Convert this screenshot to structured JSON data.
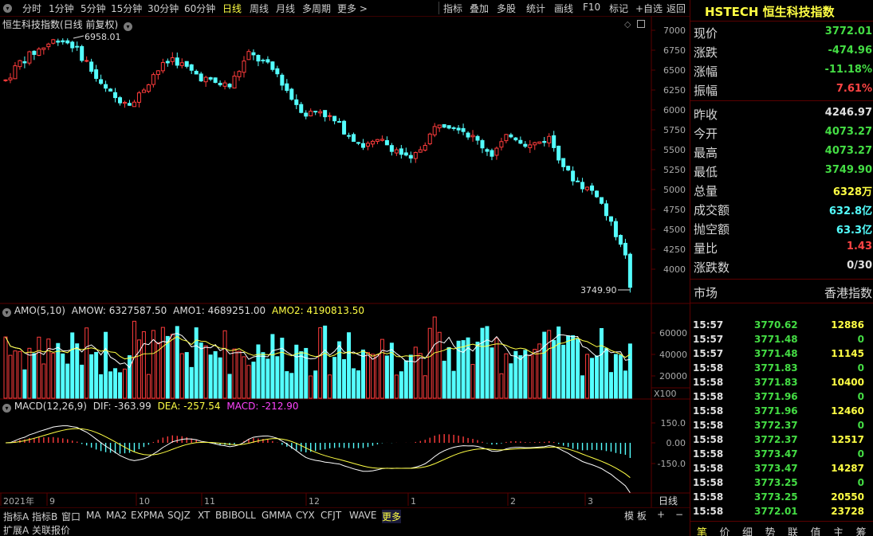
{
  "toolbar": {
    "items": [
      "分时",
      "1分钟",
      "5分钟",
      "15分钟",
      "30分钟",
      "60分钟",
      "日线",
      "周线",
      "月线",
      "多周期",
      "更多 >"
    ],
    "active_index": 6,
    "right_items": [
      "指标",
      "叠加",
      "多股",
      "统计",
      "画线",
      "F10",
      "标记",
      "+自选",
      "返回"
    ]
  },
  "chart": {
    "title": "恒生科技指数(日线 前复权)",
    "high_label": "6958.01",
    "low_label": "3749.90",
    "price_ticks": [
      "7000",
      "6750",
      "6500",
      "6250",
      "6000",
      "5750",
      "5500",
      "5250",
      "5000",
      "4750",
      "4500",
      "4250",
      "4000"
    ],
    "volume_title": "AMO(5,10)",
    "volume_amow": "AMOW: 6327587.50",
    "volume_amo1": "AMO1: 4689251.00",
    "volume_amo2": "AMO2: 4190813.50",
    "volume_ticks": [
      "60000",
      "40000",
      "20000"
    ],
    "volume_unit": "X100",
    "macd_title": "MACD(12,26,9)",
    "macd_dif": "DIF: -363.99",
    "macd_dea": "DEA: -257.54",
    "macd_macd": "MACD: -212.90",
    "macd_ticks": [
      "150.0",
      "0.00",
      "-150.0"
    ],
    "x_labels": [
      "2021年",
      "9",
      "10",
      "11",
      "12",
      "1",
      "2",
      "3"
    ],
    "period_label": "日线",
    "colors": {
      "up": "#ff3c3c",
      "down": "#54ffff",
      "yellow": "#ffff44",
      "magenta": "#ff44ff"
    }
  },
  "right_panel": {
    "title": "HSTECH 恒生科技指数",
    "quote": [
      {
        "label": "现价",
        "value": "3772.01",
        "color": "#44dd44"
      },
      {
        "label": "涨跌",
        "value": "-474.96",
        "color": "#44dd44"
      },
      {
        "label": "涨幅",
        "value": "-11.18%",
        "color": "#44dd44"
      },
      {
        "label": "振幅",
        "value": "7.61%",
        "color": "#ff4444"
      },
      {
        "label": "昨收",
        "value": "4246.97",
        "color": "#e0e0e0"
      },
      {
        "label": "今开",
        "value": "4073.27",
        "color": "#44dd44"
      },
      {
        "label": "最高",
        "value": "4073.27",
        "color": "#44dd44"
      },
      {
        "label": "最低",
        "value": "3749.90",
        "color": "#44dd44"
      },
      {
        "label": "总量",
        "value": "6328万",
        "color": "#ffff44"
      },
      {
        "label": "成交额",
        "value": "632.8亿",
        "color": "#54ffff"
      },
      {
        "label": "抛空额",
        "value": "63.3亿",
        "color": "#54ffff"
      },
      {
        "label": "量比",
        "value": "1.43",
        "color": "#ff4444"
      },
      {
        "label": "涨跌数",
        "value": "0/30",
        "color": "#e0e0e0"
      }
    ],
    "market_label": "市场",
    "market_value": "香港指数",
    "ticks": [
      {
        "time": "15:57",
        "price": "3770.62",
        "vol": "12886",
        "vc": "#ffff44"
      },
      {
        "time": "15:57",
        "price": "3771.48",
        "vol": "0",
        "vc": "#44dd44"
      },
      {
        "time": "15:57",
        "price": "3771.48",
        "vol": "11145",
        "vc": "#ffff44"
      },
      {
        "time": "15:58",
        "price": "3771.83",
        "vol": "0",
        "vc": "#44dd44"
      },
      {
        "time": "15:58",
        "price": "3771.83",
        "vol": "10400",
        "vc": "#ffff44"
      },
      {
        "time": "15:58",
        "price": "3771.96",
        "vol": "0",
        "vc": "#44dd44"
      },
      {
        "time": "15:58",
        "price": "3771.96",
        "vol": "12460",
        "vc": "#ffff44"
      },
      {
        "time": "15:58",
        "price": "3772.37",
        "vol": "0",
        "vc": "#44dd44"
      },
      {
        "time": "15:58",
        "price": "3772.37",
        "vol": "12517",
        "vc": "#ffff44"
      },
      {
        "time": "15:58",
        "price": "3773.47",
        "vol": "0",
        "vc": "#44dd44"
      },
      {
        "time": "15:58",
        "price": "3773.47",
        "vol": "14287",
        "vc": "#ffff44"
      },
      {
        "time": "15:58",
        "price": "3773.25",
        "vol": "0",
        "vc": "#44dd44"
      },
      {
        "time": "15:58",
        "price": "3773.25",
        "vol": "20550",
        "vc": "#ffff44"
      },
      {
        "time": "15:58",
        "price": "3772.01",
        "vol": "23728",
        "vc": "#ffff44"
      }
    ],
    "tabs": [
      "笔",
      "价",
      "细",
      "势",
      "联",
      "值",
      "主",
      "筹"
    ]
  },
  "bottom": {
    "row1": [
      "指标A",
      "指标B",
      "窗口",
      "MA",
      "MA2",
      "EXPMA",
      "SQJZ",
      "XT",
      "BBIBOLL",
      "GMMA",
      "CYX",
      "CFJT",
      "WAVE",
      "更多"
    ],
    "row1_active": 13,
    "row2": [
      "扩展A",
      "关联报价"
    ],
    "right": [
      "模 板",
      "+",
      "−"
    ]
  }
}
